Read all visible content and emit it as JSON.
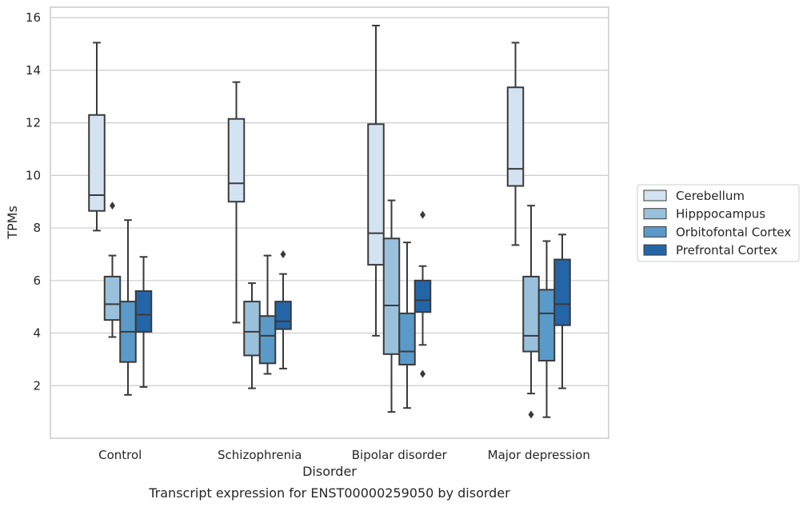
{
  "chart_data": {
    "type": "boxplot",
    "title": "",
    "caption": "Transcript expression for ENST00000259050 by disorder",
    "xlabel": "Disorder",
    "ylabel": "TPMs",
    "categories": [
      "Control",
      "Schizophrenia",
      "Bipolar disorder",
      "Major depression"
    ],
    "ylim": [
      0,
      16.4
    ],
    "yticks": [
      2,
      4,
      6,
      8,
      10,
      12,
      14,
      16
    ],
    "grid": "horizontal",
    "legend_position": "right",
    "series": [
      {
        "name": "Cerebellum",
        "color": "#d4e3f2",
        "boxes": [
          {
            "whislo": 7.9,
            "q1": 8.65,
            "med": 9.25,
            "q3": 12.3,
            "whishi": 15.05,
            "fliers": []
          },
          {
            "whislo": 4.4,
            "q1": 9.0,
            "med": 9.7,
            "q3": 12.15,
            "whishi": 13.55,
            "fliers": []
          },
          {
            "whislo": 3.9,
            "q1": 6.6,
            "med": 7.8,
            "q3": 11.95,
            "whishi": 15.7,
            "fliers": []
          },
          {
            "whislo": 7.35,
            "q1": 9.6,
            "med": 10.25,
            "q3": 13.35,
            "whishi": 15.05,
            "fliers": []
          }
        ]
      },
      {
        "name": "Hipppocampus",
        "color": "#9ac1dc",
        "boxes": [
          {
            "whislo": 3.85,
            "q1": 4.5,
            "med": 5.1,
            "q3": 6.15,
            "whishi": 6.95,
            "fliers": [
              8.85
            ]
          },
          {
            "whislo": 1.9,
            "q1": 3.15,
            "med": 4.05,
            "q3": 5.2,
            "whishi": 5.9,
            "fliers": []
          },
          {
            "whislo": 1.0,
            "q1": 3.2,
            "med": 5.05,
            "q3": 7.6,
            "whishi": 9.05,
            "fliers": []
          },
          {
            "whislo": 1.7,
            "q1": 3.3,
            "med": 3.9,
            "q3": 6.15,
            "whishi": 8.85,
            "fliers": [
              0.9
            ]
          }
        ]
      },
      {
        "name": "Orbitofontal Cortex",
        "color": "#5a9ac8",
        "boxes": [
          {
            "whislo": 1.65,
            "q1": 2.9,
            "med": 4.05,
            "q3": 5.2,
            "whishi": 8.3,
            "fliers": []
          },
          {
            "whislo": 2.45,
            "q1": 2.85,
            "med": 3.9,
            "q3": 4.65,
            "whishi": 6.95,
            "fliers": []
          },
          {
            "whislo": 1.15,
            "q1": 2.8,
            "med": 3.3,
            "q3": 4.75,
            "whishi": 7.45,
            "fliers": []
          },
          {
            "whislo": 0.8,
            "q1": 2.95,
            "med": 4.75,
            "q3": 5.65,
            "whishi": 7.5,
            "fliers": []
          }
        ]
      },
      {
        "name": "Prefrontal Cortex",
        "color": "#2465a7",
        "boxes": [
          {
            "whislo": 1.95,
            "q1": 4.05,
            "med": 4.7,
            "q3": 5.6,
            "whishi": 6.9,
            "fliers": []
          },
          {
            "whislo": 2.65,
            "q1": 4.15,
            "med": 4.45,
            "q3": 5.2,
            "whishi": 6.25,
            "fliers": [
              7.0
            ]
          },
          {
            "whislo": 3.55,
            "q1": 4.8,
            "med": 5.25,
            "q3": 6.0,
            "whishi": 6.55,
            "fliers": [
              2.45,
              8.5
            ]
          },
          {
            "whislo": 1.9,
            "q1": 4.3,
            "med": 5.1,
            "q3": 6.8,
            "whishi": 7.75,
            "fliers": []
          }
        ]
      }
    ]
  }
}
